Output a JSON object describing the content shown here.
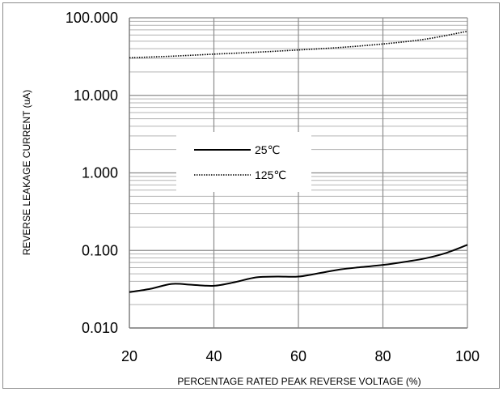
{
  "chart_data": {
    "type": "line",
    "title": "",
    "xlabel": "PERCENTAGE RATED PEAK REVERSE VOLTAGE (%)",
    "ylabel": "REVERSE LEAKAGE CURRENT (uA)",
    "xlim": [
      20,
      100
    ],
    "ylim": [
      0.01,
      100
    ],
    "yscale": "log",
    "grid": true,
    "legend_placement": "center-left",
    "x_ticks": [
      20,
      40,
      60,
      80,
      100
    ],
    "x_tick_labels": [
      "20",
      "40",
      "60",
      "80",
      "100"
    ],
    "y_ticks": [
      0.01,
      0.1,
      1,
      10,
      100
    ],
    "y_tick_labels": [
      "0.010",
      "0.100",
      "1.000",
      "10.000",
      "100.000"
    ],
    "series": [
      {
        "name": "25℃",
        "style": "solid",
        "color": "#000000",
        "x": [
          20,
          25,
          30,
          35,
          40,
          45,
          50,
          55,
          60,
          65,
          70,
          75,
          80,
          85,
          90,
          95,
          100
        ],
        "y": [
          0.029,
          0.032,
          0.037,
          0.036,
          0.035,
          0.039,
          0.045,
          0.046,
          0.046,
          0.051,
          0.057,
          0.061,
          0.065,
          0.071,
          0.079,
          0.093,
          0.118
        ]
      },
      {
        "name": "125℃",
        "style": "dotted",
        "color": "#000000",
        "x": [
          20,
          30,
          40,
          50,
          60,
          70,
          80,
          90,
          100
        ],
        "y": [
          30.5,
          32,
          34,
          36,
          38.5,
          41.5,
          46,
          53,
          67
        ]
      }
    ]
  }
}
